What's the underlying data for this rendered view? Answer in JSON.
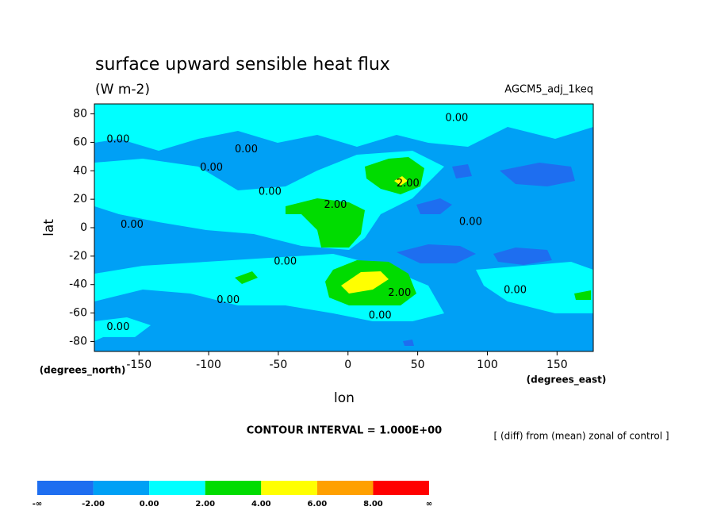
{
  "chart_data": {
    "type": "contour",
    "title": "surface upward sensible heat flux",
    "subtitle": "(W m-2)",
    "run_label": "AGCM5_adj_1keq",
    "x_label": "lon",
    "y_label": "lat",
    "x_unit": "(degrees_east)",
    "y_unit": "(degrees_north)",
    "xlim": [
      -182,
      176
    ],
    "ylim": [
      -87,
      87
    ],
    "xticks": [
      -150,
      -100,
      -50,
      0,
      50,
      100,
      150
    ],
    "yticks": [
      -80,
      -60,
      -40,
      -20,
      0,
      20,
      40,
      60,
      80
    ],
    "contour_interval": "CONTOUR INTERVAL = 1.000E+00",
    "note": "[ (diff) from (mean) zonal of control ]",
    "contour_labels": [
      {
        "label": "0.00",
        "x": -165,
        "y": 62
      },
      {
        "label": "0.00",
        "x": 78,
        "y": 77
      },
      {
        "label": "0.00",
        "x": -73,
        "y": 55
      },
      {
        "label": "0.00",
        "x": -98,
        "y": 42
      },
      {
        "label": "0.00",
        "x": -56,
        "y": 25
      },
      {
        "label": "0.00",
        "x": -155,
        "y": 2
      },
      {
        "label": "0.00",
        "x": 88,
        "y": 4
      },
      {
        "label": "0.00",
        "x": -45,
        "y": -24
      },
      {
        "label": "0.00",
        "x": -86,
        "y": -51
      },
      {
        "label": "0.00",
        "x": 120,
        "y": -44
      },
      {
        "label": "0.00",
        "x": 23,
        "y": -62
      },
      {
        "label": "0.00",
        "x": -165,
        "y": -70
      },
      {
        "label": "2.00",
        "x": -9,
        "y": 16
      },
      {
        "label": "2.00",
        "x": 43,
        "y": 31
      },
      {
        "label": "2.00",
        "x": 37,
        "y": -46
      }
    ],
    "colorbar": {
      "labels": [
        "-∞",
        "-2.00",
        "0.00",
        "2.00",
        "4.00",
        "6.00",
        "8.00",
        "∞"
      ],
      "colors": [
        "#1e6ef0",
        "#00a0f5",
        "#00ffff",
        "#00dc00",
        "#ffff00",
        "#ffa000",
        "#ff0000"
      ]
    }
  }
}
